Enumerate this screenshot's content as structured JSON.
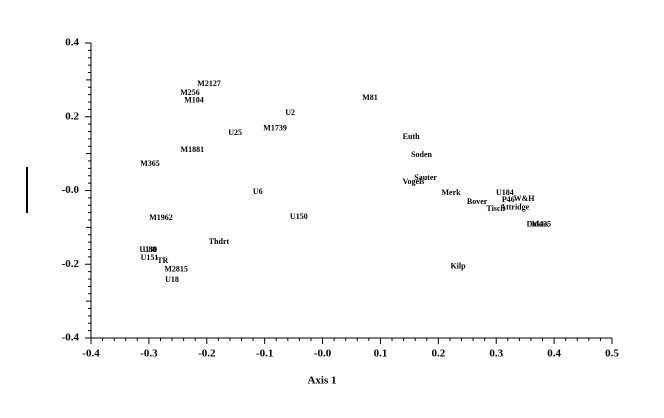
{
  "chart_data": {
    "type": "scatter",
    "x_label": "Axis 1",
    "labels": [
      "M2127",
      "M256",
      "M104",
      "U2",
      "M81",
      "U25",
      "M1739",
      "Euth",
      "M1881",
      "Soden",
      "M365",
      "Sauter",
      "Vogels",
      "U6",
      "Merk",
      "U184",
      "P46",
      "W&H",
      "Bover",
      "Attridge",
      "Tisch",
      "U150",
      "M1962",
      "Thdrt",
      "Dukes",
      "M425",
      "U130",
      "U88",
      "U151",
      "TR",
      "Kilp",
      "M2815",
      "U18"
    ],
    "x": [
      -0.196,
      -0.229,
      -0.222,
      -0.056,
      0.082,
      -0.151,
      -0.082,
      0.153,
      -0.225,
      0.171,
      -0.298,
      0.178,
      0.157,
      -0.112,
      0.222,
      0.315,
      0.321,
      0.348,
      0.267,
      0.332,
      0.299,
      -0.041,
      -0.279,
      -0.179,
      0.371,
      0.378,
      -0.301,
      -0.299,
      -0.299,
      -0.276,
      0.234,
      -0.253,
      -0.26
    ],
    "y": [
      0.289,
      0.264,
      0.243,
      0.21,
      0.251,
      0.156,
      0.167,
      0.145,
      0.11,
      0.096,
      0.072,
      0.034,
      0.023,
      -0.004,
      -0.007,
      -0.007,
      -0.026,
      -0.023,
      -0.031,
      -0.047,
      -0.05,
      -0.072,
      -0.075,
      -0.14,
      -0.093,
      -0.093,
      -0.162,
      -0.162,
      -0.183,
      -0.191,
      -0.207,
      -0.215,
      -0.243
    ],
    "color": "#000000",
    "xlim": [
      -0.4,
      0.5
    ],
    "xticks": [
      -0.4,
      -0.3,
      -0.2,
      -0.1,
      {
        "value": 0,
        "label": "-0.0"
      },
      0.1,
      0.2,
      0.3,
      0.4,
      0.5
    ],
    "ylim": [
      -0.4,
      0.4
    ],
    "yticks": [
      0.4,
      0.2,
      {
        "value": 0,
        "label": "-0.0"
      },
      -0.2,
      -0.4
    ]
  }
}
